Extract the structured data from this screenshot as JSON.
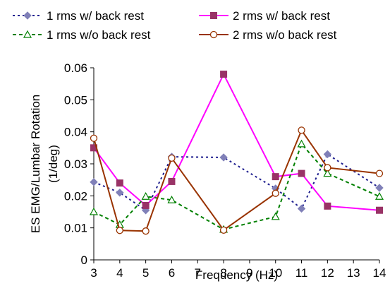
{
  "chart_data": {
    "type": "line",
    "title": "",
    "xlabel": "Frequency (Hz)",
    "ylabel_line1": "ES EMG/Lumbar Rotation",
    "ylabel_line2": "(1/deg)",
    "xlim": [
      3,
      14
    ],
    "ylim": [
      0,
      0.06
    ],
    "x_ticks": [
      "3",
      "4",
      "5",
      "6",
      "7",
      "8",
      "9",
      "10",
      "11",
      "12",
      "13",
      "14"
    ],
    "y_ticks": [
      "0",
      "0.01",
      "0.02",
      "0.03",
      "0.04",
      "0.05",
      "0.06"
    ],
    "x_tick_values": [
      3,
      4,
      5,
      6,
      7,
      8,
      9,
      10,
      11,
      12,
      13,
      14
    ],
    "y_tick_values": [
      0,
      0.01,
      0.02,
      0.03,
      0.04,
      0.05,
      0.06
    ],
    "grid": false,
    "legend_position": "top",
    "series": [
      {
        "name": "1 rms w/ back rest",
        "color": "#1f1f8f",
        "marker_color": "#8080b8",
        "dash": "dotted",
        "marker": "diamond",
        "x": [
          3,
          4,
          5,
          6,
          8,
          10,
          11,
          12,
          14
        ],
        "y": [
          0.0243,
          0.021,
          0.0155,
          0.0322,
          0.032,
          0.0223,
          0.016,
          0.033,
          0.0225
        ]
      },
      {
        "name": "2 rms w/ back rest",
        "color": "#ff00ff",
        "marker_color": "#993366",
        "dash": "solid",
        "marker": "square",
        "x": [
          3,
          4,
          5,
          6,
          8,
          10,
          11,
          12,
          14
        ],
        "y": [
          0.035,
          0.024,
          0.017,
          0.0245,
          0.058,
          0.026,
          0.027,
          0.0168,
          0.0155
        ]
      },
      {
        "name": "1 rms w/o back rest",
        "color": "#008000",
        "marker_color": "#008000",
        "dash": "dashed",
        "marker": "triangle",
        "x": [
          3,
          4,
          5,
          6,
          8,
          10,
          11,
          12,
          14
        ],
        "y": [
          0.015,
          0.011,
          0.0198,
          0.0187,
          0.0095,
          0.0135,
          0.0362,
          0.027,
          0.0198
        ]
      },
      {
        "name": "2 rms w/o back rest",
        "color": "#993300",
        "marker_color": "#993300",
        "dash": "solid",
        "marker": "circle",
        "x": [
          3,
          4,
          5,
          6,
          8,
          10,
          11,
          12,
          14
        ],
        "y": [
          0.038,
          0.0092,
          0.009,
          0.0318,
          0.0093,
          0.0208,
          0.0405,
          0.0288,
          0.027
        ]
      }
    ]
  }
}
